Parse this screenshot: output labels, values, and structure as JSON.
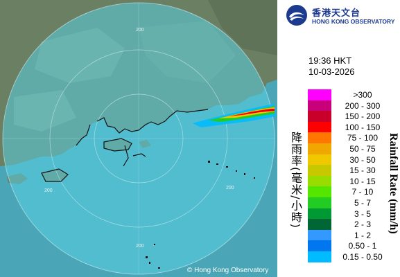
{
  "logo": {
    "name_cn": "香港天文台",
    "name_en": "HONG KONG OBSERVATORY"
  },
  "timestamp": {
    "time": "19:36 HKT",
    "date": "10-03-2026"
  },
  "legend": {
    "title_cn": "降雨率(毫米/小時)",
    "title_en": "Rainfall Rate (mm/h)",
    "items": [
      {
        "label": ">300",
        "color": "#ff00ff"
      },
      {
        "label": "200 - 300",
        "color": "#c8007a"
      },
      {
        "label": "150 - 200",
        "color": "#c8002a"
      },
      {
        "label": "100 - 150",
        "color": "#ff0000"
      },
      {
        "label": "75 - 100",
        "color": "#ff7700"
      },
      {
        "label": "50 - 75",
        "color": "#f0a800"
      },
      {
        "label": "30 - 50",
        "color": "#f0c800"
      },
      {
        "label": "15 - 30",
        "color": "#c8c800"
      },
      {
        "label": "10 - 15",
        "color": "#99dd00"
      },
      {
        "label": "7 - 10",
        "color": "#55e600"
      },
      {
        "label": "5 - 7",
        "color": "#22cc22"
      },
      {
        "label": "3 - 5",
        "color": "#009933"
      },
      {
        "label": "2 - 3",
        "color": "#006633"
      },
      {
        "label": "1 - 2",
        "color": "#3399ff"
      },
      {
        "label": "0.50 - 1",
        "color": "#0077ee"
      },
      {
        "label": "0.15 - 0.50",
        "color": "#00bbff"
      }
    ]
  },
  "map": {
    "copyright": "© Hong Kong Observatory",
    "range_labels": [
      "200",
      "200",
      "200",
      "200"
    ],
    "colors": {
      "sea": "#6fc6cc",
      "land": "#6b7f63",
      "range_fill": "#57cfe2"
    }
  }
}
